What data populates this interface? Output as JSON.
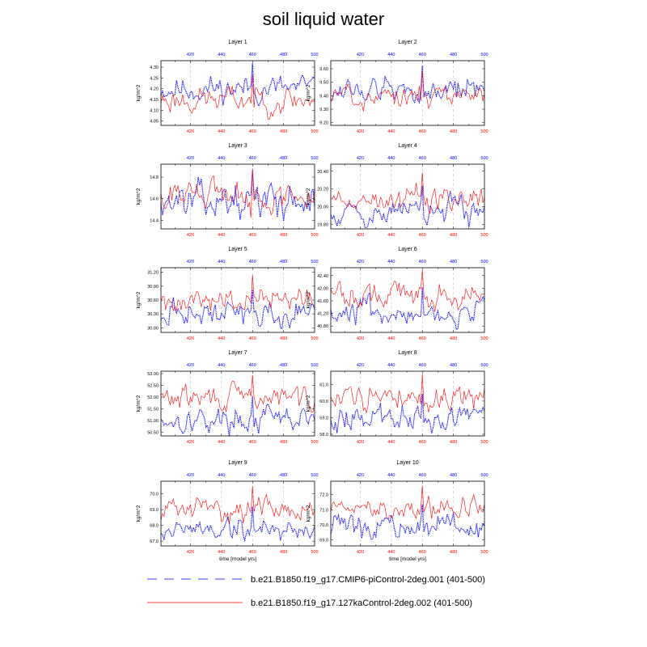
{
  "figure": {
    "title": "soil liquid water"
  },
  "colors": {
    "series_a": "#0000ff",
    "series_b": "#ff0000",
    "bottom_axis": "#ff0000",
    "top_axis": "#0000ff",
    "gridline": "#b0b0b0"
  },
  "legend": [
    {
      "label": "b.e21.B1850.f19_g17.CMIP6-piControl-2deg.001 (401-500)",
      "style": "dashed",
      "color": "#0000ff"
    },
    {
      "label": "b.e21.B1850.f19_g17.127kaControl-2deg.002 (401-500)",
      "style": "solid",
      "color": "#ff0000"
    }
  ],
  "chart_data": [
    {
      "type": "line",
      "title": "Layer 1",
      "ylabel": "kg/m^2",
      "xlabel": "",
      "xlim": [
        401,
        500
      ],
      "xticks": [
        420,
        440,
        460,
        480,
        500
      ],
      "ylim": [
        4.03,
        4.33
      ],
      "yticks": [
        4.05,
        4.1,
        4.15,
        4.2,
        4.25,
        4.3
      ],
      "ytick_labels": [
        "4.05",
        "4.10",
        "4.15",
        "4.20",
        "4.25",
        "4.30"
      ],
      "series": [
        {
          "label": "b.e21.B1850.f19_g17.CMIP6-piControl-2deg.001 (401-500)",
          "mean": 4.2,
          "amp": 0.045,
          "seed": 11
        },
        {
          "label": "b.e21.B1850.f19_g17.127kaControl-2deg.002 (401-500)",
          "mean": 4.15,
          "amp": 0.045,
          "seed": 23
        }
      ]
    },
    {
      "type": "line",
      "title": "Layer 2",
      "ylabel": "kg/m^2",
      "xlabel": "",
      "xlim": [
        401,
        500
      ],
      "xticks": [
        420,
        440,
        460,
        480,
        500
      ],
      "ylim": [
        9.18,
        9.66
      ],
      "yticks": [
        9.2,
        9.3,
        9.4,
        9.5,
        9.6
      ],
      "ytick_labels": [
        "9.20",
        "9.30",
        "9.40",
        "9.50",
        "9.60"
      ],
      "series": [
        {
          "label": "b.e21.B1850.f19_g17.CMIP6-piControl-2deg.001 (401-500)",
          "mean": 9.44,
          "amp": 0.07,
          "seed": 12
        },
        {
          "label": "b.e21.B1850.f19_g17.127kaControl-2deg.002 (401-500)",
          "mean": 9.4,
          "amp": 0.07,
          "seed": 24
        }
      ]
    },
    {
      "type": "line",
      "title": "Layer 3",
      "ylabel": "kg/m^2",
      "xlabel": "",
      "xlim": [
        401,
        500
      ],
      "xticks": [
        420,
        440,
        460,
        480,
        500
      ],
      "ylim": [
        14.32,
        14.92
      ],
      "yticks": [
        14.4,
        14.6,
        14.8
      ],
      "ytick_labels": [
        "14.4",
        "14.6",
        "14.8"
      ],
      "series": [
        {
          "label": "b.e21.B1850.f19_g17.CMIP6-piControl-2deg.001 (401-500)",
          "mean": 14.58,
          "amp": 0.11,
          "seed": 13
        },
        {
          "label": "b.e21.B1850.f19_g17.127kaControl-2deg.002 (401-500)",
          "mean": 14.62,
          "amp": 0.1,
          "seed": 25
        }
      ]
    },
    {
      "type": "line",
      "title": "Layer 4",
      "ylabel": "kg/m^2",
      "xlabel": "",
      "xlim": [
        401,
        500
      ],
      "xticks": [
        420,
        440,
        460,
        480,
        500
      ],
      "ylim": [
        19.75,
        20.48
      ],
      "yticks": [
        19.8,
        20.0,
        20.2,
        20.4
      ],
      "ytick_labels": [
        "19.80",
        "20.00",
        "20.20",
        "20.40"
      ],
      "series": [
        {
          "label": "b.e21.B1850.f19_g17.CMIP6-piControl-2deg.001 (401-500)",
          "mean": 19.95,
          "amp": 0.11,
          "seed": 14
        },
        {
          "label": "b.e21.B1850.f19_g17.127kaControl-2deg.002 (401-500)",
          "mean": 20.1,
          "amp": 0.11,
          "seed": 26
        }
      ]
    },
    {
      "type": "line",
      "title": "Layer 5",
      "ylabel": "kg/m^2",
      "xlabel": "",
      "xlim": [
        401,
        500
      ],
      "xticks": [
        420,
        440,
        460,
        480,
        500
      ],
      "ylim": [
        29.9,
        31.3
      ],
      "yticks": [
        30.0,
        30.3,
        30.6,
        30.9,
        31.2
      ],
      "ytick_labels": [
        "30.00",
        "30.30",
        "30.60",
        "30.90",
        "31.20"
      ],
      "series": [
        {
          "label": "b.e21.B1850.f19_g17.CMIP6-piControl-2deg.001 (401-500)",
          "mean": 30.3,
          "amp": 0.2,
          "seed": 15
        },
        {
          "label": "b.e21.B1850.f19_g17.127kaControl-2deg.002 (401-500)",
          "mean": 30.62,
          "amp": 0.2,
          "seed": 27
        }
      ]
    },
    {
      "type": "line",
      "title": "Layer 6",
      "ylabel": "kg/m^2",
      "xlabel": "",
      "xlim": [
        401,
        500
      ],
      "xticks": [
        420,
        440,
        460,
        480,
        500
      ],
      "ylim": [
        40.6,
        42.65
      ],
      "yticks": [
        40.8,
        41.2,
        41.6,
        42.0,
        42.4
      ],
      "ytick_labels": [
        "40.80",
        "41.20",
        "41.60",
        "42.00",
        "42.40"
      ],
      "series": [
        {
          "label": "b.e21.B1850.f19_g17.CMIP6-piControl-2deg.001 (401-500)",
          "mean": 41.25,
          "amp": 0.3,
          "seed": 16
        },
        {
          "label": "b.e21.B1850.f19_g17.127kaControl-2deg.002 (401-500)",
          "mean": 41.8,
          "amp": 0.3,
          "seed": 28
        }
      ]
    },
    {
      "type": "line",
      "title": "Layer 7",
      "ylabel": "kg/m^2",
      "xlabel": "",
      "xlim": [
        401,
        500
      ],
      "xticks": [
        420,
        440,
        460,
        480,
        500
      ],
      "ylim": [
        50.35,
        53.1
      ],
      "yticks": [
        50.5,
        51.0,
        51.5,
        52.0,
        52.5,
        53.0
      ],
      "ytick_labels": [
        "50.50",
        "51.00",
        "51.50",
        "52.00",
        "52.50",
        "53.00"
      ],
      "series": [
        {
          "label": "b.e21.B1850.f19_g17.CMIP6-piControl-2deg.001 (401-500)",
          "mean": 51.05,
          "amp": 0.38,
          "seed": 17
        },
        {
          "label": "b.e21.B1850.f19_g17.127kaControl-2deg.002 (401-500)",
          "mean": 51.95,
          "amp": 0.38,
          "seed": 29
        }
      ]
    },
    {
      "type": "line",
      "title": "Layer 8",
      "ylabel": "kg/m^2",
      "xlabel": "",
      "xlim": [
        401,
        500
      ],
      "xticks": [
        420,
        440,
        460,
        480,
        500
      ],
      "ylim": [
        57.9,
        61.8
      ],
      "yticks": [
        58.0,
        59.0,
        60.0,
        61.0
      ],
      "ytick_labels": [
        "58.0",
        "59.0",
        "60.0",
        "61.0"
      ],
      "series": [
        {
          "label": "b.e21.B1850.f19_g17.CMIP6-piControl-2deg.001 (401-500)",
          "mean": 59.0,
          "amp": 0.55,
          "seed": 18
        },
        {
          "label": "b.e21.B1850.f19_g17.127kaControl-2deg.002 (401-500)",
          "mean": 60.2,
          "amp": 0.55,
          "seed": 30
        }
      ]
    },
    {
      "type": "line",
      "title": "Layer 9",
      "ylabel": "kg/m^2",
      "xlabel": "time [model yrs]",
      "xlim": [
        401,
        500
      ],
      "xticks": [
        420,
        440,
        460,
        480,
        500
      ],
      "ylim": [
        66.7,
        70.8
      ],
      "yticks": [
        67.0,
        68.0,
        69.0,
        70.0
      ],
      "ytick_labels": [
        "67.0",
        "68.0",
        "69.0",
        "70.0"
      ],
      "series": [
        {
          "label": "b.e21.B1850.f19_g17.CMIP6-piControl-2deg.001 (401-500)",
          "mean": 67.75,
          "amp": 0.55,
          "seed": 19
        },
        {
          "label": "b.e21.B1850.f19_g17.127kaControl-2deg.002 (401-500)",
          "mean": 69.05,
          "amp": 0.55,
          "seed": 31
        }
      ]
    },
    {
      "type": "line",
      "title": "Layer 10",
      "ylabel": "kg/m^2",
      "xlabel": "time [model yrs]",
      "xlim": [
        401,
        500
      ],
      "xticks": [
        420,
        440,
        460,
        480,
        500
      ],
      "ylim": [
        68.6,
        72.9
      ],
      "yticks": [
        69.0,
        70.0,
        71.0,
        72.0
      ],
      "ytick_labels": [
        "69.0",
        "70.0",
        "71.0",
        "72.0"
      ],
      "series": [
        {
          "label": "b.e21.B1850.f19_g17.CMIP6-piControl-2deg.001 (401-500)",
          "mean": 69.85,
          "amp": 0.58,
          "seed": 20
        },
        {
          "label": "b.e21.B1850.f19_g17.127kaControl-2deg.002 (401-500)",
          "mean": 71.1,
          "amp": 0.58,
          "seed": 32
        }
      ]
    }
  ]
}
